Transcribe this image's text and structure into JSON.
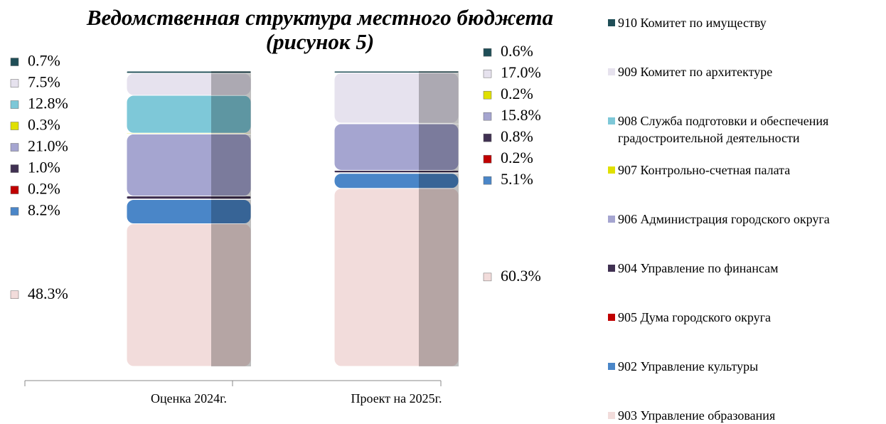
{
  "chart_data": {
    "type": "stacked_bar",
    "title": "Ведомственная структура местного бюджета (рисунок 5)",
    "categories": [
      "Оценка 2024г.",
      "Проект на 2025г."
    ],
    "ylim": [
      0,
      100
    ],
    "series": [
      {
        "name": "903 Управление образования",
        "color": "#f2dcdb",
        "values": [
          48.3,
          60.3
        ],
        "value_labels": [
          "48.3%",
          "60.3%"
        ]
      },
      {
        "name": "902 Управление культуры",
        "color": "#4a86c8",
        "values": [
          8.2,
          5.1
        ],
        "value_labels": [
          "8.2%",
          "5.1%"
        ]
      },
      {
        "name": "905 Дума городского округа",
        "color": "#c00000",
        "values": [
          0.2,
          0.2
        ],
        "value_labels": [
          "0.2%",
          "0.2%"
        ]
      },
      {
        "name": "904 Управление по финансам",
        "color": "#403152",
        "values": [
          1.0,
          0.8
        ],
        "value_labels": [
          "1.0%",
          "0.8%"
        ]
      },
      {
        "name": "906 Администрация городского округа",
        "color": "#a5a5d0",
        "values": [
          21.0,
          15.8
        ],
        "value_labels": [
          "21.0%",
          "15.8%"
        ]
      },
      {
        "name": "907 Контрольно-счетная палата",
        "color": "#e0e000",
        "values": [
          0.3,
          0.2
        ],
        "value_labels": [
          "0.3%",
          "0.2%"
        ]
      },
      {
        "name": "908 Служба подготовки и обеспечения градостроительной деятельности",
        "color": "#7ec8d8",
        "values": [
          12.8,
          null
        ],
        "value_labels": [
          "12.8%",
          null
        ]
      },
      {
        "name": "909 Комитет по архитектуре",
        "color": "#e6e2ee",
        "values": [
          7.5,
          17.0
        ],
        "value_labels": [
          "7.5%",
          "17.0%"
        ]
      },
      {
        "name": "910 Комитет по имуществу",
        "color": "#1f4e57",
        "values": [
          0.7,
          0.6
        ],
        "value_labels": [
          "0.7%",
          "0.6%"
        ]
      }
    ]
  }
}
